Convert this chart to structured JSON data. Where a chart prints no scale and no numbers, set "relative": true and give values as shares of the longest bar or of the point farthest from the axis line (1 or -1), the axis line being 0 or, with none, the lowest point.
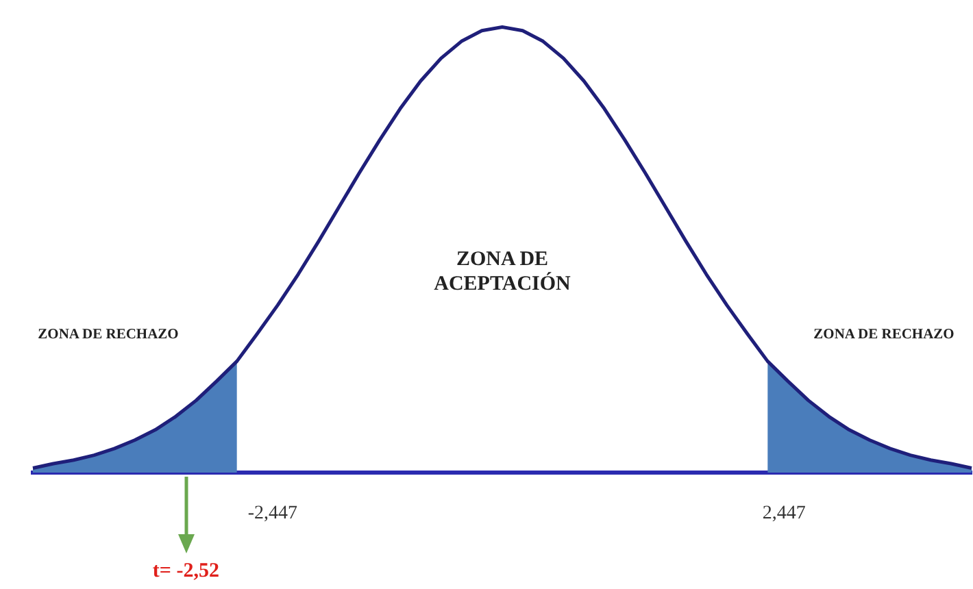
{
  "chart_data": {
    "type": "line",
    "relative": true,
    "grid": false,
    "legend": false,
    "marker": "none",
    "line_style": "solid",
    "tick_labels": false,
    "categories": [
      null,
      null,
      null,
      null,
      null,
      null,
      null,
      null,
      null,
      null,
      null,
      null,
      null,
      null,
      null,
      null,
      null,
      null,
      null,
      null,
      null,
      null,
      null,
      null,
      null,
      null,
      null,
      null,
      null,
      null,
      null,
      null,
      null,
      null,
      null,
      null,
      null,
      null,
      null,
      null,
      null,
      null,
      null,
      null,
      null,
      null,
      null
    ],
    "series": [
      {
        "color": "#1f1f7a",
        "values": [
          0.01,
          0.02,
          0.028,
          0.039,
          0.054,
          0.073,
          0.096,
          0.126,
          0.162,
          0.205,
          0.25,
          0.312,
          0.376,
          0.445,
          0.519,
          0.596,
          0.673,
          0.747,
          0.817,
          0.879,
          0.93,
          0.968,
          0.992,
          1,
          0.992,
          0.968,
          0.93,
          0.879,
          0.817,
          0.747,
          0.673,
          0.596,
          0.519,
          0.445,
          0.376,
          0.312,
          0.25,
          0.205,
          0.162,
          0.126,
          0.096,
          0.073,
          0.054,
          0.039,
          0.028,
          0.02,
          0.01
        ]
      },
      {
        "type": "area",
        "color": "#4a7dbb",
        "values": [
          0.01,
          0.02,
          0.028,
          0.039,
          0.054,
          0.073,
          0.096,
          0.126,
          0.162,
          0.205,
          0.25,
          null,
          null,
          null,
          null,
          null,
          null,
          null,
          null,
          null,
          null,
          null,
          null,
          null,
          null,
          null,
          null,
          null,
          null,
          null,
          null,
          null,
          null,
          null,
          null,
          null,
          null,
          null,
          null,
          null,
          null,
          null,
          null,
          null,
          null,
          null,
          null
        ]
      },
      {
        "type": "area",
        "color": "#4a7dbb",
        "values": [
          null,
          null,
          null,
          null,
          null,
          null,
          null,
          null,
          null,
          null,
          null,
          null,
          null,
          null,
          null,
          null,
          null,
          null,
          null,
          null,
          null,
          null,
          null,
          null,
          null,
          null,
          null,
          null,
          null,
          null,
          null,
          null,
          null,
          null,
          null,
          null,
          0.25,
          0.205,
          0.162,
          0.126,
          0.096,
          0.073,
          0.054,
          0.039,
          0.028,
          0.02,
          0.01
        ]
      }
    ],
    "annotations": [
      "ZONA DE RECHAZO",
      "ZONA DE ACEPTACIÓN",
      "ZONA DE RECHAZO",
      "-2,447",
      "2,447",
      "t= -2,52"
    ]
  }
}
